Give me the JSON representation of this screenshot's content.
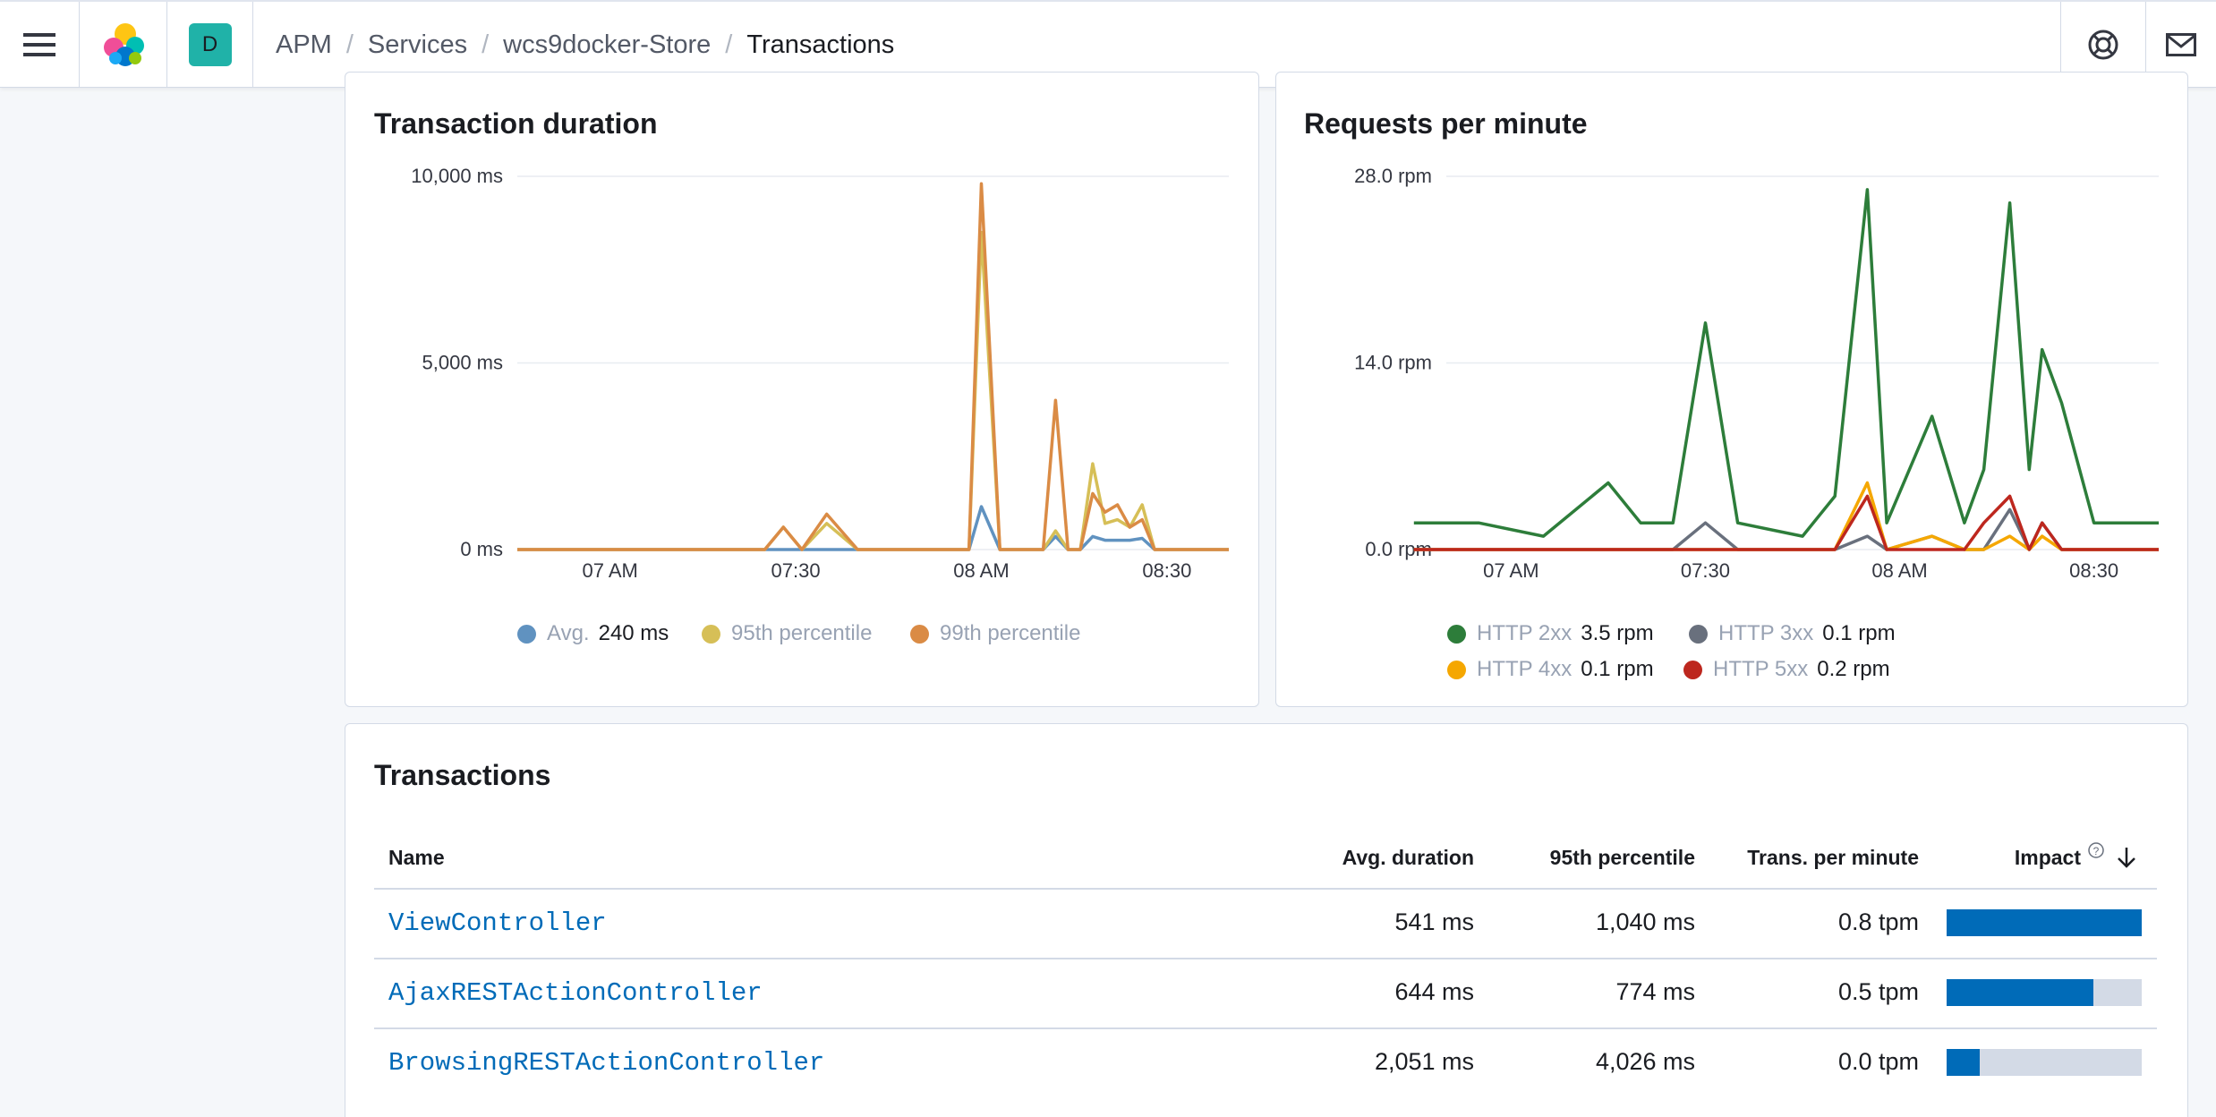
{
  "header": {
    "space_initial": "D",
    "breadcrumbs": [
      "APM",
      "Services",
      "wcs9docker-Store",
      "Transactions"
    ]
  },
  "icons": {
    "menu": "menu-icon",
    "logo": "elastic-logo",
    "help": "help-lifebuoy-icon",
    "mail": "mail-icon"
  },
  "duration_chart": {
    "title": "Transaction duration",
    "y_ticks": [
      "10,000 ms",
      "5,000 ms",
      "0 ms"
    ],
    "x_ticks": [
      "07 AM",
      "07:30",
      "08 AM",
      "08:30"
    ],
    "legend": [
      {
        "name": "Avg.",
        "value": "240 ms",
        "color": "#6092c0"
      },
      {
        "name": "95th percentile",
        "value": "",
        "color": "#d6bf57"
      },
      {
        "name": "99th percentile",
        "value": "",
        "color": "#da8b45"
      }
    ]
  },
  "rpm_chart": {
    "title": "Requests per minute",
    "y_ticks": [
      "28.0 rpm",
      "14.0 rpm",
      "0.0 rpm"
    ],
    "x_ticks": [
      "07 AM",
      "07:30",
      "08 AM",
      "08:30"
    ],
    "legend": [
      {
        "name": "HTTP 2xx",
        "value": "3.5 rpm",
        "color": "#2d7d3a"
      },
      {
        "name": "HTTP 3xx",
        "value": "0.1 rpm",
        "color": "#69707d"
      },
      {
        "name": "HTTP 4xx",
        "value": "0.1 rpm",
        "color": "#f5a700"
      },
      {
        "name": "HTTP 5xx",
        "value": "0.2 rpm",
        "color": "#bd271e"
      }
    ]
  },
  "chart_data": [
    {
      "type": "line",
      "title": "Transaction duration",
      "x": [
        "06:45",
        "06:50",
        "06:55",
        "07:00",
        "07:05",
        "07:10",
        "07:15",
        "07:20",
        "07:25",
        "07:28",
        "07:31",
        "07:35",
        "07:40",
        "07:45",
        "07:50",
        "07:55",
        "07:58",
        "08:00",
        "08:03",
        "08:05",
        "08:10",
        "08:12",
        "08:14",
        "08:16",
        "08:18",
        "08:20",
        "08:22",
        "08:24",
        "08:26",
        "08:28",
        "08:30",
        "08:35",
        "08:40"
      ],
      "series": [
        {
          "name": "Avg.",
          "values": [
            0,
            0,
            0,
            0,
            0,
            0,
            0,
            0,
            0,
            0,
            0,
            0,
            0,
            0,
            0,
            0,
            0,
            1150,
            0,
            0,
            0,
            350,
            0,
            0,
            350,
            250,
            250,
            250,
            300,
            0,
            0,
            0,
            0
          ]
        },
        {
          "name": "95th percentile",
          "values": [
            0,
            0,
            0,
            0,
            0,
            0,
            0,
            0,
            0,
            600,
            0,
            700,
            0,
            0,
            0,
            0,
            0,
            8500,
            0,
            0,
            0,
            500,
            0,
            0,
            2300,
            700,
            800,
            600,
            1200,
            0,
            0,
            0,
            0
          ]
        },
        {
          "name": "99th percentile",
          "values": [
            0,
            0,
            0,
            0,
            0,
            0,
            0,
            0,
            0,
            600,
            0,
            950,
            0,
            0,
            0,
            0,
            0,
            9800,
            0,
            0,
            0,
            4000,
            0,
            0,
            1500,
            1000,
            1200,
            600,
            800,
            0,
            0,
            0,
            0
          ]
        }
      ],
      "ylim": [
        0,
        10000
      ]
    },
    {
      "type": "line",
      "title": "Requests per minute",
      "x": [
        "06:45",
        "06:55",
        "07:05",
        "07:15",
        "07:20",
        "07:25",
        "07:30",
        "07:35",
        "07:45",
        "07:50",
        "07:55",
        "07:58",
        "08:05",
        "08:10",
        "08:13",
        "08:17",
        "08:20",
        "08:22",
        "08:25",
        "08:30",
        "08:40"
      ],
      "series": [
        {
          "name": "HTTP 2xx",
          "values": [
            2,
            2,
            1,
            5,
            2,
            2,
            17,
            2,
            1,
            4,
            27,
            2,
            10,
            2,
            6,
            26,
            6,
            15,
            11,
            2,
            2
          ]
        },
        {
          "name": "HTTP 3xx",
          "values": [
            0,
            0,
            0,
            0,
            0,
            0,
            2,
            0,
            0,
            0,
            1,
            0,
            1,
            0,
            0,
            3,
            0,
            2,
            0,
            0,
            0
          ]
        },
        {
          "name": "HTTP 4xx",
          "values": [
            0,
            0,
            0,
            0,
            0,
            0,
            0,
            0,
            0,
            0,
            5,
            0,
            1,
            0,
            0,
            1,
            0,
            1,
            0,
            0,
            0
          ]
        },
        {
          "name": "HTTP 5xx",
          "values": [
            0,
            0,
            0,
            0,
            0,
            0,
            0,
            0,
            0,
            0,
            4,
            0,
            0,
            0,
            2,
            4,
            0,
            2,
            0,
            0,
            0
          ]
        }
      ],
      "ylim": [
        0,
        28
      ]
    }
  ],
  "transactions": {
    "title": "Transactions",
    "columns": [
      "Name",
      "Avg. duration",
      "95th percentile",
      "Trans. per minute",
      "Impact"
    ],
    "rows": [
      {
        "name": "ViewController",
        "avg": "541 ms",
        "p95": "1,040 ms",
        "tpm": "0.8 tpm",
        "impact": 1.0
      },
      {
        "name": "AjaxRESTActionController",
        "avg": "644 ms",
        "p95": "774 ms",
        "tpm": "0.5 tpm",
        "impact": 0.75
      },
      {
        "name": "BrowsingRESTActionController",
        "avg": "2,051 ms",
        "p95": "4,026 ms",
        "tpm": "0.0 tpm",
        "impact": 0.17
      }
    ]
  }
}
